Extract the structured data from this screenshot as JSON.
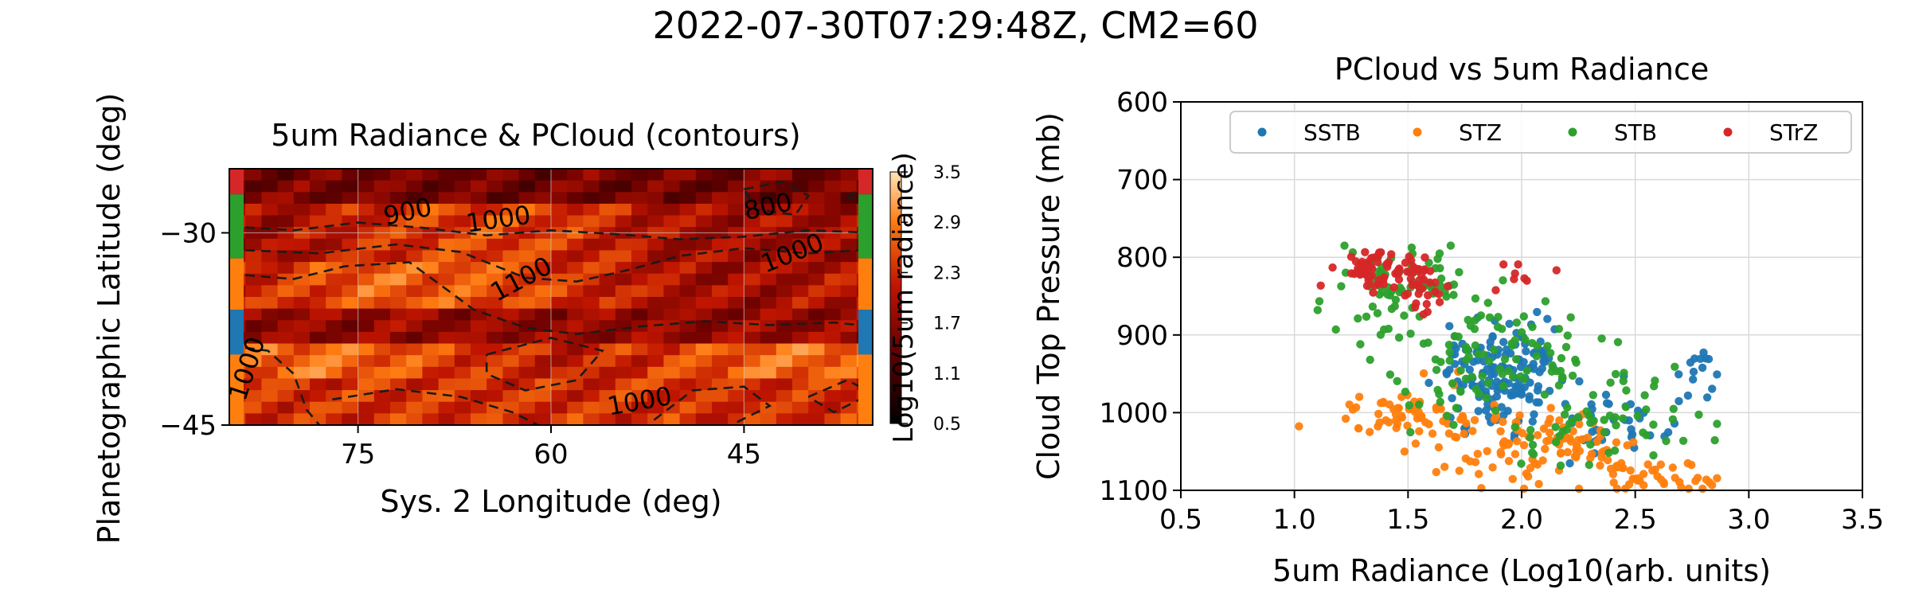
{
  "figure": {
    "suptitle": "2022-07-30T07:29:48Z, CM2=60"
  },
  "colors": {
    "SSTB": "#1f77b4",
    "STZ": "#ff7f0e",
    "STB": "#2ca02c",
    "STrZ": "#d62728",
    "grid": "#d9d9d9",
    "axis": "#000000"
  },
  "chart_data": [
    {
      "type": "heatmap",
      "title": "5um Radiance & PCloud (contours)",
      "xlabel": "Sys. 2 Longitude (deg)",
      "ylabel": "Planetographic Latitude (deg)",
      "xlim": [
        85,
        35
      ],
      "ylim": [
        -45,
        -25
      ],
      "xticks": [
        "75",
        "60",
        "45"
      ],
      "yticks": [
        "−30",
        "−45"
      ],
      "colormap": "gist_heat",
      "grid": true,
      "colorbar": {
        "label": "Log10(5um radiance)",
        "range": [
          0.5,
          3.5
        ],
        "ticks": [
          "3.5",
          "2.9",
          "2.3",
          "1.7",
          "1.1",
          "0.5"
        ]
      },
      "band_markers": [
        {
          "band": "STrZ",
          "lat_range": [
            -27,
            -25
          ]
        },
        {
          "band": "STB",
          "lat_range": [
            -32,
            -27
          ]
        },
        {
          "band": "STZ",
          "lat_range": [
            -36,
            -32
          ]
        },
        {
          "band": "SSTB",
          "lat_range": [
            -39.5,
            -36
          ]
        },
        {
          "band": "STZ",
          "lat_range": [
            -45,
            -39.5
          ]
        }
      ],
      "contour_labels": [
        "900",
        "1000",
        "800",
        "1000",
        "1100",
        "1000",
        "1000"
      ],
      "contour_levels": [
        800,
        900,
        1000,
        1100
      ]
    },
    {
      "type": "scatter",
      "title": "PCloud vs 5um Radiance",
      "xlabel": "5um Radiance (Log10(arb. units)",
      "ylabel": "Cloud Top Pressure (mb)",
      "xlim": [
        0.5,
        3.5
      ],
      "ylim": [
        1100,
        600
      ],
      "xticks": [
        "0.5",
        "1.0",
        "1.5",
        "2.0",
        "2.5",
        "3.0",
        "3.5"
      ],
      "yticks": [
        "600",
        "700",
        "800",
        "900",
        "1000",
        "1100"
      ],
      "grid": true,
      "legend_position": "top",
      "series": [
        {
          "name": "SSTB",
          "clusters": [
            {
              "cx": 1.9,
              "cy": 945,
              "sx": 0.13,
              "sy": 35,
              "n": 150
            },
            {
              "cx": 2.35,
              "cy": 1020,
              "sx": 0.14,
              "sy": 20,
              "n": 40
            },
            {
              "cx": 2.78,
              "cy": 950,
              "sx": 0.04,
              "sy": 20,
              "n": 14
            }
          ]
        },
        {
          "name": "STZ",
          "clusters": [
            {
              "cx": 1.5,
              "cy": 1005,
              "sx": 0.15,
              "sy": 18,
              "n": 60
            },
            {
              "cx": 2.05,
              "cy": 1045,
              "sx": 0.2,
              "sy": 25,
              "n": 110
            },
            {
              "cx": 2.6,
              "cy": 1085,
              "sx": 0.15,
              "sy": 12,
              "n": 40
            }
          ]
        },
        {
          "name": "STB",
          "clusters": [
            {
              "cx": 1.45,
              "cy": 830,
              "sx": 0.2,
              "sy": 25,
              "n": 70
            },
            {
              "cx": 1.85,
              "cy": 925,
              "sx": 0.25,
              "sy": 40,
              "n": 100
            },
            {
              "cx": 2.3,
              "cy": 1010,
              "sx": 0.25,
              "sy": 35,
              "n": 60
            }
          ]
        },
        {
          "name": "STrZ",
          "clusters": [
            {
              "cx": 1.4,
              "cy": 815,
              "sx": 0.1,
              "sy": 15,
              "n": 70
            },
            {
              "cx": 1.55,
              "cy": 845,
              "sx": 0.05,
              "sy": 15,
              "n": 20
            },
            {
              "cx": 1.95,
              "cy": 830,
              "sx": 0.15,
              "sy": 15,
              "n": 10
            }
          ]
        }
      ]
    }
  ]
}
